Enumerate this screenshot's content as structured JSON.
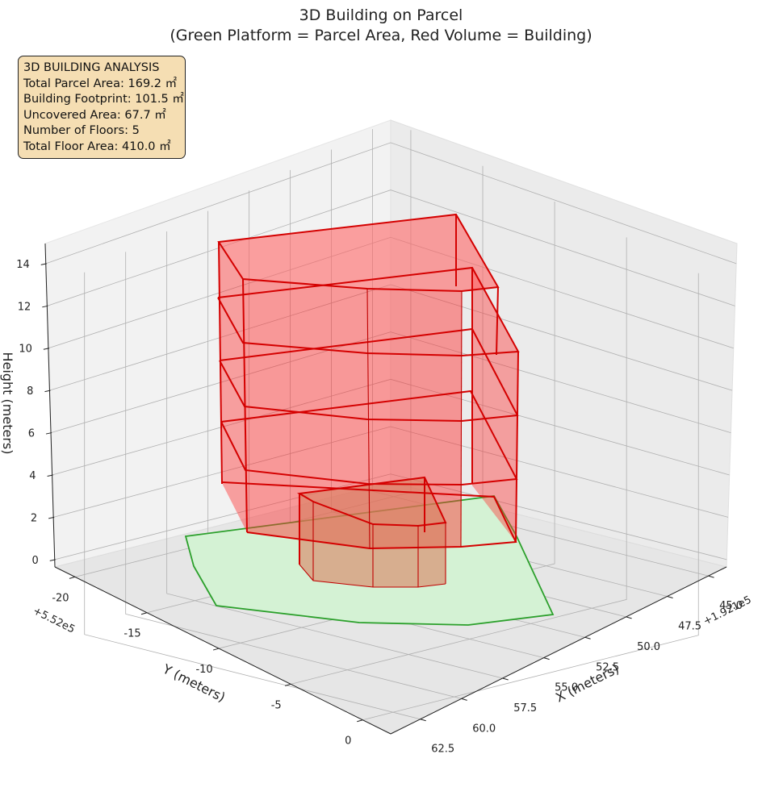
{
  "chart_data": {
    "type": "3d-polygon",
    "title": "3D Building on Parcel",
    "subtitle": "(Green Platform = Parcel Area, Red Volume = Building)",
    "xlabel": "X (meters)",
    "ylabel": "Y (meters)",
    "zlabel": "Height (meters)",
    "x_offset": "+1.921e5",
    "y_offset": "+5.52e5",
    "x_ticks": [
      "45.0",
      "47.5",
      "50.0",
      "52.5",
      "55.0",
      "57.5",
      "60.0",
      "62.5"
    ],
    "y_ticks": [
      "-20",
      "-15",
      "-10",
      "-5",
      "0"
    ],
    "z_ticks": [
      "0",
      "2",
      "4",
      "6",
      "8",
      "10",
      "12",
      "14"
    ],
    "grid": true,
    "series": [
      {
        "name": "Parcel Area",
        "color": "#2ca02c",
        "fill": "#d4f2d4",
        "z": 0
      },
      {
        "name": "Building",
        "color": "#d40000",
        "fill": "#ff3030",
        "floors": 5,
        "floor_height": 3,
        "height": 15
      }
    ],
    "annotation": {
      "title": "3D BUILDING ANALYSIS",
      "lines": [
        "Total Parcel Area: 169.2 ㎡",
        "Building Footprint: 101.5 ㎡",
        "Uncovered Area: 67.7 ㎡",
        "Number of Floors: 5",
        "Total Floor Area: 410.0 ㎡"
      ]
    }
  }
}
